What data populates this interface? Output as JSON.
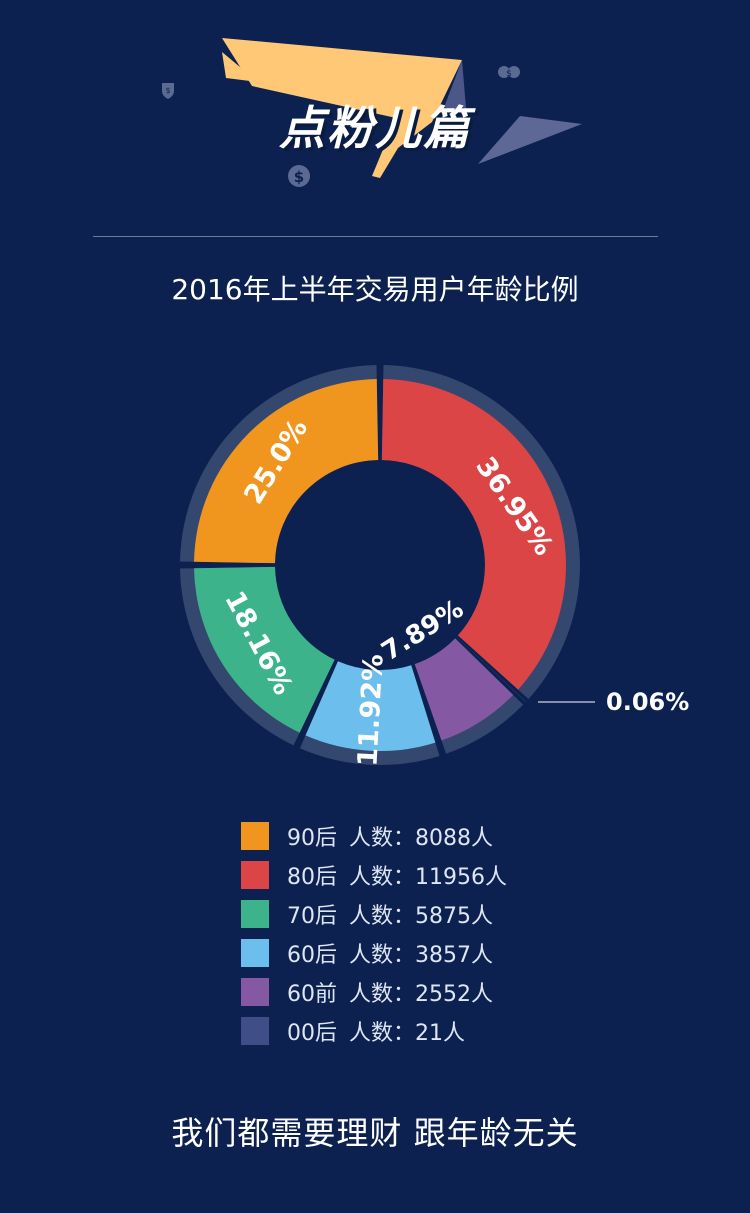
{
  "header": {
    "section_title": "点粉儿篇"
  },
  "colors": {
    "background": "#0c2150",
    "ring_bg": "#34476f",
    "accent_yellow": "#fec877"
  },
  "chart_data": {
    "type": "pie",
    "title": "2016年上半年交易用户年龄比例",
    "donut": true,
    "slices": [
      {
        "category": "90后",
        "count": 8088,
        "percent_label": "25.0%",
        "color": "#f0961f"
      },
      {
        "category": "80后",
        "count": 11956,
        "percent_label": "36.95%",
        "color": "#dc4545"
      },
      {
        "category": "70后",
        "count": 5875,
        "percent_label": "18.16%",
        "color": "#3cb38b"
      },
      {
        "category": "60后",
        "count": 3857,
        "percent_label": "11.92%",
        "color": "#6cbfed"
      },
      {
        "category": "60前",
        "count": 2552,
        "percent_label": "7.89%",
        "color": "#8458a3"
      },
      {
        "category": "00后",
        "count": 21,
        "percent_label": "0.06%",
        "color": "#3f4e86"
      }
    ],
    "draw_order": [
      "80后",
      "00后",
      "60前",
      "60后",
      "70后",
      "90后"
    ],
    "count_prefix": "人数：",
    "count_suffix": "人"
  },
  "footer": {
    "tagline": "我们都需要理财 跟年龄无关"
  }
}
